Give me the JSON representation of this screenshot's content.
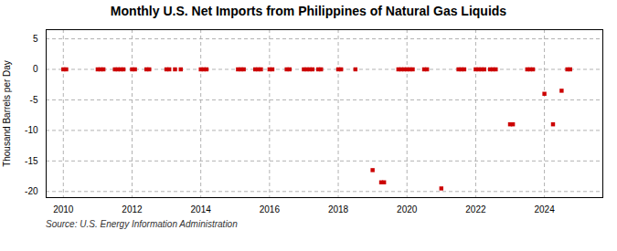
{
  "chart_data": {
    "type": "scatter",
    "title": "Monthly U.S. Net Imports from Philippines of Natural Gas Liquids",
    "ylabel": "Thousand Barrels per Day",
    "source": "Source: U.S. Energy Information Administration",
    "x": [
      2010.0,
      2010.083,
      2011.0,
      2011.083,
      2011.167,
      2011.5,
      2011.583,
      2011.667,
      2011.75,
      2012.0,
      2012.083,
      2012.417,
      2012.5,
      2013.0,
      2013.083,
      2013.25,
      2013.417,
      2014.0,
      2014.083,
      2014.167,
      2015.083,
      2015.167,
      2015.25,
      2015.583,
      2015.667,
      2015.75,
      2016.0,
      2016.083,
      2016.5,
      2016.583,
      2017.0,
      2017.083,
      2017.167,
      2017.25,
      2017.417,
      2017.5,
      2018.0,
      2018.083,
      2018.5,
      2019.0,
      2019.25,
      2019.333,
      2019.75,
      2019.833,
      2019.917,
      2020.0,
      2020.083,
      2020.167,
      2020.5,
      2020.583,
      2021.0,
      2021.5,
      2021.583,
      2021.667,
      2022.0,
      2022.083,
      2022.167,
      2022.25,
      2022.417,
      2022.5,
      2022.583,
      2023.0,
      2023.083,
      2023.5,
      2023.583,
      2023.667,
      2024.0,
      2024.25,
      2024.5,
      2024.667,
      2024.75
    ],
    "values": [
      0,
      0,
      0,
      0,
      0,
      0,
      0,
      0,
      0,
      0,
      0,
      0,
      0,
      0,
      0,
      0,
      0,
      0,
      0,
      0,
      0,
      0,
      0,
      0,
      0,
      0,
      0,
      0,
      0,
      0,
      0,
      0,
      0,
      0,
      0,
      0,
      0,
      0,
      0,
      -16.5,
      -18.5,
      -18.5,
      0,
      0,
      0,
      0,
      0,
      0,
      0,
      0,
      -19.5,
      0,
      0,
      0,
      0,
      0,
      0,
      0,
      0,
      0,
      0,
      -9,
      -9,
      0,
      0,
      0,
      -4,
      -9,
      -3.5,
      0,
      0
    ],
    "color": "#cc0000",
    "marker": "square",
    "xlim": [
      2009.5,
      2025.7
    ],
    "ylim": [
      -21,
      6.5
    ],
    "xticks": [
      2010,
      2012,
      2014,
      2016,
      2018,
      2020,
      2022,
      2024
    ],
    "yticks": [
      5,
      0,
      -5,
      -10,
      -15,
      -20
    ],
    "grid": true
  }
}
